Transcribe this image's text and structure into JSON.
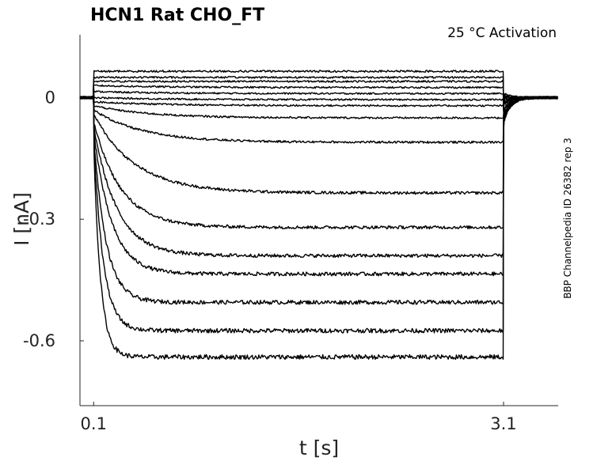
{
  "chart_data": {
    "type": "line",
    "title": "HCN1  Rat  CHO_FT",
    "annotation": "25 °C  Activation",
    "side_note": "BBP Channelpedia ID 26382 rep 3",
    "xlabel": "t [s]",
    "ylabel": "I [nA]",
    "xlim": [
      0.0,
      3.5
    ],
    "ylim": [
      -0.76,
      0.155
    ],
    "xticks": [
      0.1,
      3.1
    ],
    "xtick_labels": [
      "0.1",
      "3.1"
    ],
    "yticks": [
      0,
      -0.3,
      -0.6
    ],
    "ytick_labels": [
      "0",
      "-0.3",
      "-0.6"
    ],
    "grid": false,
    "legend": "none",
    "color": "#000000",
    "protocol": {
      "holding_current": 0.0,
      "step_start": 0.1,
      "step_end": 3.1,
      "record_end": 3.5
    },
    "series": [
      {
        "initial": 0.065,
        "steady": 0.065,
        "tau": 0.5,
        "tail": 0.01
      },
      {
        "initial": 0.05,
        "steady": 0.05,
        "tau": 0.5,
        "tail": 0.005
      },
      {
        "initial": 0.04,
        "steady": 0.04,
        "tau": 0.5,
        "tail": 0.0
      },
      {
        "initial": 0.03,
        "steady": 0.025,
        "tau": 0.5,
        "tail": 0.0
      },
      {
        "initial": 0.015,
        "steady": 0.01,
        "tau": 0.5,
        "tail": -0.005
      },
      {
        "initial": 0.0,
        "steady": -0.005,
        "tau": 0.5,
        "tail": -0.01
      },
      {
        "initial": -0.01,
        "steady": -0.02,
        "tau": 0.5,
        "tail": -0.015
      },
      {
        "initial": -0.02,
        "steady": -0.05,
        "tau": 0.4,
        "tail": -0.02
      },
      {
        "initial": -0.03,
        "steady": -0.11,
        "tau": 0.35,
        "tail": -0.03
      },
      {
        "initial": -0.04,
        "steady": -0.235,
        "tau": 0.3,
        "tail": -0.035
      },
      {
        "initial": -0.06,
        "steady": -0.32,
        "tau": 0.2,
        "tail": -0.04
      },
      {
        "initial": -0.07,
        "steady": -0.39,
        "tau": 0.17,
        "tail": -0.045
      },
      {
        "initial": -0.08,
        "steady": -0.435,
        "tau": 0.13,
        "tail": -0.05
      },
      {
        "initial": -0.09,
        "steady": -0.505,
        "tau": 0.09,
        "tail": -0.055
      },
      {
        "initial": -0.1,
        "steady": -0.575,
        "tau": 0.07,
        "tail": -0.06
      },
      {
        "initial": -0.11,
        "steady": -0.64,
        "tau": 0.05,
        "tail": -0.065
      }
    ]
  }
}
